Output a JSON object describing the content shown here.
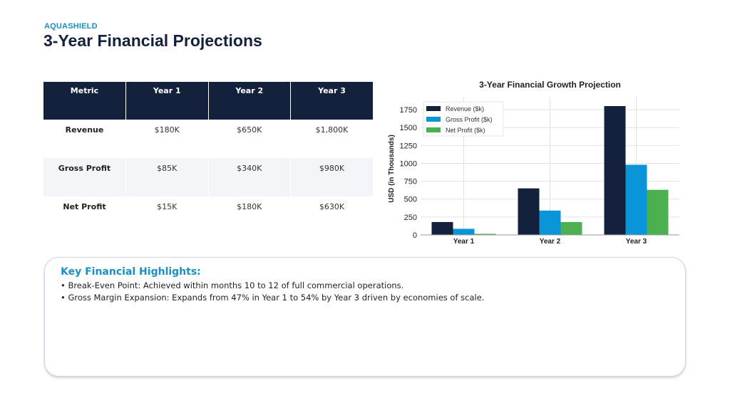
{
  "header": {
    "brand": "AQUASHIELD",
    "title": "3-Year Financial Projections"
  },
  "table": {
    "headers": [
      "Metric",
      "Year 1",
      "Year 2",
      "Year 3"
    ],
    "rows": [
      [
        "Revenue",
        "$180K",
        "$650K",
        "$1,800K"
      ],
      [
        "Gross Profit",
        "$85K",
        "$340K",
        "$980K"
      ],
      [
        "Net Profit",
        "$15K",
        "$180K",
        "$630K"
      ]
    ]
  },
  "chart_data": {
    "type": "bar",
    "title": "3-Year Financial Growth Projection",
    "xlabel": "",
    "ylabel": "USD (in Thousands)",
    "categories": [
      "Year 1",
      "Year 2",
      "Year 3"
    ],
    "series": [
      {
        "name": "Revenue ($k)",
        "values": [
          180,
          650,
          1800
        ],
        "color": "#14213d"
      },
      {
        "name": "Gross Profit ($k)",
        "values": [
          85,
          340,
          980
        ],
        "color": "#0a95d8"
      },
      {
        "name": "Net Profit ($k)",
        "values": [
          15,
          180,
          630
        ],
        "color": "#4caf50"
      }
    ],
    "ylim": [
      0,
      1850
    ],
    "yticks": [
      0,
      250,
      500,
      750,
      1000,
      1250,
      1500,
      1750
    ],
    "grid": true,
    "legend": "top-left"
  },
  "highlights": {
    "title": "Key Financial Highlights:",
    "items": [
      "• Break-Even Point: Achieved within months 10 to 12 of full commercial operations.",
      "• Gross Margin Expansion: Expands from 47% in Year 1 to 54% by Year 3 driven by economies of scale."
    ]
  }
}
